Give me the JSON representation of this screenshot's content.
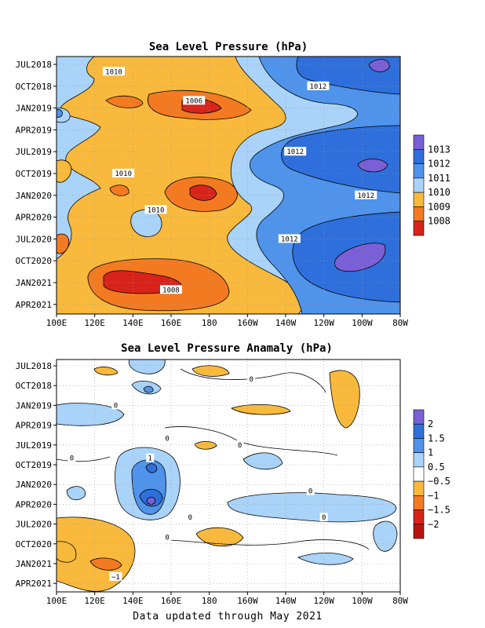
{
  "footer": "Data updated through May 2021",
  "chart_data": [
    {
      "type": "contour",
      "title": "Sea Level Pressure (hPa)",
      "x_ticks": [
        "100E",
        "120E",
        "140E",
        "160E",
        "180",
        "160W",
        "140W",
        "120W",
        "100W",
        "80W"
      ],
      "y_ticks": [
        "JUL2018",
        "OCT2018",
        "JAN2019",
        "APR2019",
        "JUL2019",
        "OCT2019",
        "JAN2020",
        "APR2020",
        "JUL2020",
        "OCT2020",
        "JAN2021",
        "APR2021"
      ],
      "colorbar": {
        "labels": [
          "1013",
          "1012",
          "1011",
          "1010",
          "1009",
          "1008"
        ],
        "colors": [
          "#7a5fd6",
          "#2e6fdc",
          "#4f93ea",
          "#a9d3f8",
          "#f8b93c",
          "#f37a21",
          "#d8231b"
        ]
      },
      "contour_labels": [
        {
          "text": "1010",
          "lon": 130,
          "date": "2018-08"
        },
        {
          "text": "1006",
          "lon": 172,
          "date": "2018-12"
        },
        {
          "text": "1012",
          "lon": 237,
          "date": "2018-10"
        },
        {
          "text": "1012",
          "lon": 225,
          "date": "2019-07"
        },
        {
          "text": "1010",
          "lon": 135,
          "date": "2019-10"
        },
        {
          "text": "1012",
          "lon": 262,
          "date": "2020-01"
        },
        {
          "text": "1010",
          "lon": 152,
          "date": "2020-03"
        },
        {
          "text": "1012",
          "lon": 222,
          "date": "2020-07"
        },
        {
          "text": "1008",
          "lon": 160,
          "date": "2021-02"
        }
      ]
    },
    {
      "type": "contour",
      "title": "Sea Level Pressure Anamaly (hPa)",
      "x_ticks": [
        "100E",
        "120E",
        "140E",
        "160E",
        "180",
        "160W",
        "140W",
        "120W",
        "100W",
        "80W"
      ],
      "y_ticks": [
        "JUL2018",
        "OCT2018",
        "JAN2019",
        "APR2019",
        "JUL2019",
        "OCT2019",
        "JAN2020",
        "APR2020",
        "JUL2020",
        "OCT2020",
        "JAN2021",
        "APR2021"
      ],
      "colorbar": {
        "labels": [
          "2",
          "1.5",
          "1",
          "0.5",
          "−0.5",
          "−1",
          "−1.5",
          "−2"
        ],
        "colors": [
          "#7a5fd6",
          "#2e6fdc",
          "#4f93ea",
          "#a9d3f8",
          "#ffffff",
          "#f8b93c",
          "#f37a21",
          "#d8231b",
          "#b8140f"
        ]
      },
      "contour_labels": [
        {
          "text": "0",
          "lon": 202,
          "date": "2018-09"
        },
        {
          "text": "0",
          "lon": 131,
          "date": "2019-01"
        },
        {
          "text": "0",
          "lon": 158,
          "date": "2019-06"
        },
        {
          "text": "0",
          "lon": 196,
          "date": "2019-07"
        },
        {
          "text": "0",
          "lon": 108,
          "date": "2019-09"
        },
        {
          "text": "1",
          "lon": 149,
          "date": "2019-09"
        },
        {
          "text": "0",
          "lon": 233,
          "date": "2020-02"
        },
        {
          "text": "0",
          "lon": 170,
          "date": "2020-06"
        },
        {
          "text": "0",
          "lon": 240,
          "date": "2020-06"
        },
        {
          "text": "0",
          "lon": 158,
          "date": "2020-09"
        },
        {
          "text": "−1",
          "lon": 131,
          "date": "2021-03"
        }
      ]
    }
  ]
}
